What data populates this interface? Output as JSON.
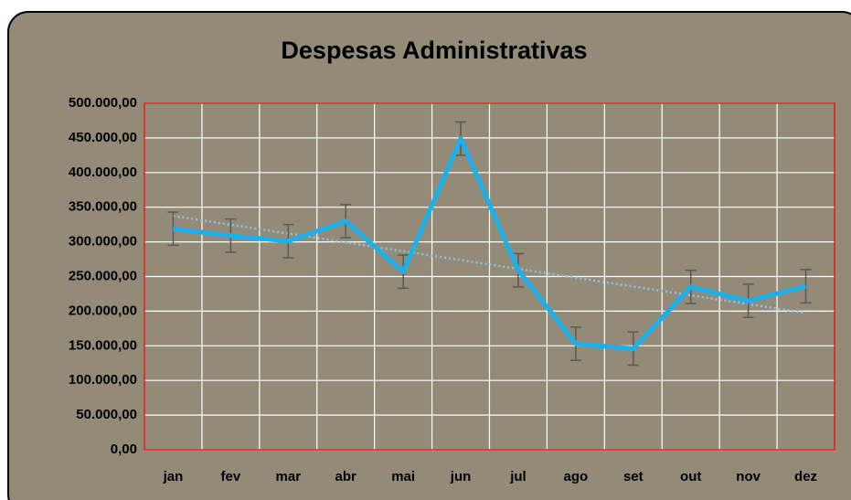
{
  "chart_data": {
    "type": "line",
    "title": "Despesas Administrativas",
    "categories": [
      "jan",
      "fev",
      "mar",
      "abr",
      "mai",
      "jun",
      "jul",
      "ago",
      "set",
      "out",
      "nov",
      "dez"
    ],
    "series": [
      {
        "name": "Despesas",
        "color": "#1ab0ec",
        "values": [
          319000,
          309000,
          301000,
          330000,
          257000,
          449000,
          259000,
          153000,
          146000,
          235000,
          215000,
          236000
        ],
        "errors": [
          24000,
          24000,
          24000,
          24000,
          24000,
          24000,
          24000,
          24000,
          24000,
          24000,
          24000,
          24000
        ],
        "trendline": "linear"
      }
    ],
    "ylim": [
      0,
      500000
    ],
    "yticks": [
      {
        "value": 0,
        "label": "0,00"
      },
      {
        "value": 50000,
        "label": "50.000,00"
      },
      {
        "value": 100000,
        "label": "100.000,00"
      },
      {
        "value": 150000,
        "label": "150.000,00"
      },
      {
        "value": 200000,
        "label": "200.000,00"
      },
      {
        "value": 250000,
        "label": "250.000,00"
      },
      {
        "value": 300000,
        "label": "300.000,00"
      },
      {
        "value": 350000,
        "label": "350.000,00"
      },
      {
        "value": 400000,
        "label": "400.000,00"
      },
      {
        "value": 450000,
        "label": "450.000,00"
      },
      {
        "value": 500000,
        "label": "500.000,00"
      }
    ],
    "grid": true
  }
}
